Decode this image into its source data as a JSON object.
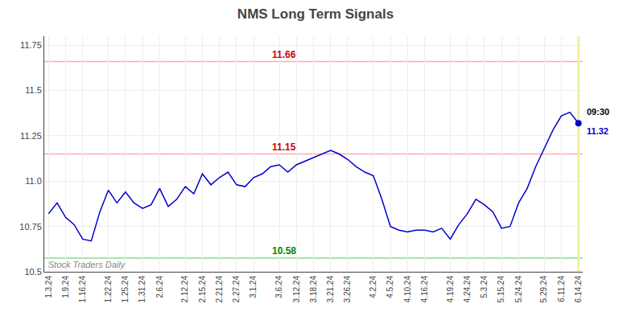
{
  "chart_data": {
    "type": "line",
    "title": "NMS Long Term Signals",
    "categories": [
      "1.3.24",
      null,
      "1.9.24",
      null,
      "1.16.24",
      null,
      null,
      "1.22.24",
      null,
      "1.25.24",
      null,
      "1.31.24",
      null,
      "2.6.24",
      null,
      null,
      "2.12.24",
      null,
      "2.15.24",
      null,
      "2.21.24",
      null,
      "2.27.24",
      null,
      "3.1.24",
      null,
      null,
      "3.6.24",
      null,
      "3.12.24",
      null,
      "3.18.24",
      null,
      "3.21.24",
      null,
      "3.26.24",
      null,
      null,
      "4.2.24",
      null,
      "4.5.24",
      null,
      "4.10.24",
      null,
      "4.16.24",
      null,
      null,
      "4.19.24",
      null,
      "4.24.24",
      null,
      "5.3.24",
      null,
      "5.15.24",
      null,
      "5.24.24",
      null,
      null,
      "5.29.24",
      null,
      "6.11.24",
      null,
      "6.14.24"
    ],
    "values": [
      10.82,
      10.88,
      10.8,
      10.76,
      10.68,
      10.67,
      10.83,
      10.95,
      10.88,
      10.94,
      10.88,
      10.85,
      10.87,
      10.96,
      10.86,
      10.9,
      10.97,
      10.93,
      11.04,
      10.98,
      11.02,
      11.05,
      10.98,
      10.97,
      11.02,
      11.04,
      11.08,
      11.09,
      11.05,
      11.09,
      11.11,
      11.13,
      11.15,
      11.17,
      11.15,
      11.12,
      11.08,
      11.05,
      11.03,
      10.9,
      10.75,
      10.73,
      10.72,
      10.73,
      10.73,
      10.72,
      10.74,
      10.68,
      10.76,
      10.82,
      10.9,
      10.87,
      10.83,
      10.74,
      10.75,
      10.88,
      10.96,
      11.08,
      11.18,
      11.28,
      11.36,
      11.38,
      11.32
    ],
    "color": "#0000cc",
    "hlines": [
      {
        "value": 11.66,
        "label": "11.66",
        "color": "#ffaaaa",
        "label_color": "#cc0000"
      },
      {
        "value": 11.15,
        "label": "11.15",
        "color": "#ffaaaa",
        "label_color": "#cc0000"
      },
      {
        "value": 10.575,
        "label": "10.58",
        "color": "#88dd88",
        "label_color": "#008800"
      }
    ],
    "vline": {
      "color": "#ffff00"
    },
    "last_point": {
      "color": "#0000cc",
      "time_label": "09:30",
      "time_label_color": "#000000",
      "value_label": "11.32"
    },
    "annotations": [
      {
        "text": "Stock Traders Daily",
        "color": "#888888"
      }
    ],
    "ylim": [
      10.5,
      11.8
    ],
    "yticks": [
      10.5,
      10.75,
      {
        "value": 11,
        "label": "11.0"
      },
      11.25,
      11.5,
      11.75
    ],
    "grid": true
  }
}
